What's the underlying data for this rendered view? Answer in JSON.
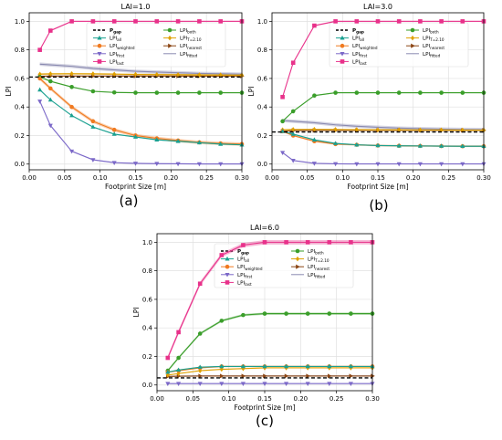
{
  "chart_data": [
    {
      "id": "a",
      "type": "line",
      "panel_label": "(a)",
      "title": "LAI=1.0",
      "xlabel": "Footprint Size [m]",
      "ylabel": "LPI",
      "xlim": [
        0,
        0.3
      ],
      "ylim": [
        -0.04,
        1.06
      ],
      "xticks": [
        "0.00",
        "0.05",
        "0.10",
        "0.15",
        "0.20",
        "0.25",
        "0.30"
      ],
      "yticks": [
        "0.0",
        "0.2",
        "0.4",
        "0.6",
        "0.8",
        "1.0"
      ],
      "legend_columns": [
        [
          "P_gap",
          "LPI_all",
          "LPI_weighted",
          "LPI_first",
          "LPI_last"
        ],
        [
          "LPI_both",
          "LPI_T=2.10",
          "LPI_nearest",
          "LPI_fitted"
        ]
      ],
      "x": [
        0.015,
        0.03,
        0.06,
        0.09,
        0.12,
        0.15,
        0.18,
        0.21,
        0.24,
        0.27,
        0.3
      ],
      "series": [
        {
          "key": "LPI_fitted",
          "color": "#8a8ab0",
          "marker": "none",
          "band": 0.012,
          "values": [
            0.7,
            0.695,
            0.685,
            0.67,
            0.66,
            0.65,
            0.645,
            0.64,
            0.635,
            0.633,
            0.63
          ]
        },
        {
          "key": "LPI_nearest",
          "color": "#8b4513",
          "marker": "tri-right",
          "band": 0.004,
          "values": [
            0.615,
            0.617,
            0.617,
            0.617,
            0.617,
            0.617,
            0.617,
            0.617,
            0.617,
            0.617,
            0.617
          ]
        },
        {
          "key": "LPI_T=2.10",
          "color": "#e0a000",
          "marker": "diamond",
          "band": 0.006,
          "values": [
            0.63,
            0.632,
            0.633,
            0.632,
            0.63,
            0.628,
            0.627,
            0.626,
            0.625,
            0.624,
            0.623
          ]
        },
        {
          "key": "LPI_last",
          "color": "#e8318a",
          "marker": "square",
          "band": 0.005,
          "values": [
            0.8,
            0.935,
            1.0,
            1.0,
            1.0,
            1.0,
            1.0,
            1.0,
            1.0,
            1.0,
            1.0
          ]
        },
        {
          "key": "LPI_both",
          "color": "#3a9e2a",
          "marker": "circle",
          "band": 0.004,
          "values": [
            0.61,
            0.58,
            0.54,
            0.51,
            0.502,
            0.5,
            0.5,
            0.5,
            0.5,
            0.5,
            0.5
          ]
        },
        {
          "key": "LPI_weighted",
          "color": "#f07a20",
          "marker": "circle",
          "band": 0.012,
          "values": [
            0.6,
            0.53,
            0.4,
            0.3,
            0.24,
            0.2,
            0.18,
            0.165,
            0.152,
            0.145,
            0.14
          ]
        },
        {
          "key": "LPI_all",
          "color": "#1aa090",
          "marker": "tri-up",
          "band": 0.004,
          "values": [
            0.52,
            0.45,
            0.34,
            0.26,
            0.21,
            0.19,
            0.17,
            0.16,
            0.15,
            0.14,
            0.135
          ]
        },
        {
          "key": "LPI_first",
          "color": "#7b68c8",
          "marker": "tri-down",
          "band": 0.004,
          "values": [
            0.44,
            0.27,
            0.09,
            0.03,
            0.01,
            0.005,
            0.003,
            0.002,
            0.001,
            0.001,
            0.001
          ]
        },
        {
          "key": "P_gap",
          "color": "#000000",
          "marker": "dashed",
          "band": 0,
          "values": [
            0.61,
            0.61,
            0.61,
            0.61,
            0.61,
            0.61,
            0.61,
            0.61,
            0.61,
            0.61,
            0.61
          ]
        }
      ]
    },
    {
      "id": "b",
      "type": "line",
      "panel_label": "(b)",
      "title": "LAI=3.0",
      "xlabel": "Footprint Size [m]",
      "ylabel": "LPI",
      "xlim": [
        0,
        0.3
      ],
      "ylim": [
        -0.04,
        1.06
      ],
      "xticks": [
        "0.00",
        "0.05",
        "0.10",
        "0.15",
        "0.20",
        "0.25",
        "0.30"
      ],
      "yticks": [
        "0.0",
        "0.2",
        "0.4",
        "0.6",
        "0.8",
        "1.0"
      ],
      "legend_columns": [
        [
          "P_gap",
          "LPI_all",
          "LPI_weighted",
          "LPI_first",
          "LPI_last"
        ],
        [
          "LPI_both",
          "LPI_T=2.10",
          "LPI_nearest",
          "LPI_fitted"
        ]
      ],
      "x": [
        0.015,
        0.03,
        0.06,
        0.09,
        0.12,
        0.15,
        0.18,
        0.21,
        0.24,
        0.27,
        0.3
      ],
      "series": [
        {
          "key": "LPI_fitted",
          "color": "#8a8ab0",
          "marker": "none",
          "band": 0.012,
          "values": [
            0.305,
            0.3,
            0.29,
            0.275,
            0.265,
            0.258,
            0.252,
            0.248,
            0.245,
            0.243,
            0.242
          ]
        },
        {
          "key": "LPI_nearest",
          "color": "#8b4513",
          "marker": "tri-right",
          "band": 0.004,
          "values": [
            0.23,
            0.235,
            0.236,
            0.236,
            0.236,
            0.236,
            0.236,
            0.236,
            0.236,
            0.236,
            0.236
          ]
        },
        {
          "key": "LPI_T=2.10",
          "color": "#e0a000",
          "marker": "diamond",
          "band": 0.005,
          "values": [
            0.24,
            0.242,
            0.243,
            0.242,
            0.241,
            0.24,
            0.24,
            0.239,
            0.239,
            0.238,
            0.238
          ]
        },
        {
          "key": "LPI_last",
          "color": "#e8318a",
          "marker": "square",
          "band": 0.005,
          "values": [
            0.47,
            0.71,
            0.97,
            1.0,
            1.0,
            1.0,
            1.0,
            1.0,
            1.0,
            1.0,
            1.0
          ]
        },
        {
          "key": "LPI_both",
          "color": "#3a9e2a",
          "marker": "circle",
          "band": 0.004,
          "values": [
            0.3,
            0.37,
            0.48,
            0.5,
            0.5,
            0.5,
            0.5,
            0.5,
            0.5,
            0.5,
            0.5
          ]
        },
        {
          "key": "LPI_weighted",
          "color": "#f07a20",
          "marker": "circle",
          "band": 0.006,
          "values": [
            0.23,
            0.2,
            0.16,
            0.14,
            0.135,
            0.13,
            0.128,
            0.127,
            0.126,
            0.125,
            0.125
          ]
        },
        {
          "key": "LPI_all",
          "color": "#1aa090",
          "marker": "tri-up",
          "band": 0.004,
          "values": [
            0.23,
            0.21,
            0.17,
            0.145,
            0.135,
            0.13,
            0.128,
            0.127,
            0.126,
            0.125,
            0.125
          ]
        },
        {
          "key": "LPI_first",
          "color": "#7b68c8",
          "marker": "tri-down",
          "band": 0.003,
          "values": [
            0.08,
            0.025,
            0.005,
            0.002,
            0.001,
            0.001,
            0.001,
            0.001,
            0.001,
            0.001,
            0.001
          ]
        },
        {
          "key": "P_gap",
          "color": "#000000",
          "marker": "dashed",
          "band": 0,
          "values": [
            0.225,
            0.225,
            0.225,
            0.225,
            0.225,
            0.225,
            0.225,
            0.225,
            0.225,
            0.225,
            0.225
          ]
        }
      ]
    },
    {
      "id": "c",
      "type": "line",
      "panel_label": "(c)",
      "title": "LAI=6.0",
      "xlabel": "Footprint Size [m]",
      "ylabel": "LPI",
      "xlim": [
        0,
        0.3
      ],
      "ylim": [
        -0.04,
        1.06
      ],
      "xticks": [
        "0.00",
        "0.05",
        "0.10",
        "0.15",
        "0.20",
        "0.25",
        "0.30"
      ],
      "yticks": [
        "0.0",
        "0.2",
        "0.4",
        "0.6",
        "0.8",
        "1.0"
      ],
      "legend_columns": [
        [
          "P_gap",
          "LPI_all",
          "LPI_weighted",
          "LPI_first",
          "LPI_last"
        ],
        [
          "LPI_both",
          "LPI_T=2.10",
          "LPI_nearest",
          "LPI_fitted"
        ]
      ],
      "x": [
        0.015,
        0.03,
        0.06,
        0.09,
        0.12,
        0.15,
        0.18,
        0.21,
        0.24,
        0.27,
        0.3
      ],
      "series": [
        {
          "key": "LPI_fitted",
          "color": "#8a8ab0",
          "marker": "none",
          "band": 0.004,
          "values": [
            0.06,
            0.062,
            0.063,
            0.063,
            0.063,
            0.063,
            0.063,
            0.063,
            0.063,
            0.063,
            0.063
          ]
        },
        {
          "key": "LPI_nearest",
          "color": "#8b4513",
          "marker": "tri-right",
          "band": 0.003,
          "values": [
            0.06,
            0.062,
            0.063,
            0.063,
            0.063,
            0.063,
            0.063,
            0.063,
            0.063,
            0.063,
            0.063
          ]
        },
        {
          "key": "LPI_T=2.10",
          "color": "#e0a000",
          "marker": "diamond",
          "band": 0.003,
          "values": [
            0.07,
            0.08,
            0.1,
            0.11,
            0.115,
            0.12,
            0.12,
            0.12,
            0.12,
            0.12,
            0.12
          ]
        },
        {
          "key": "LPI_last",
          "color": "#e8318a",
          "marker": "square",
          "band": 0.015,
          "values": [
            0.19,
            0.37,
            0.71,
            0.91,
            0.98,
            1.0,
            1.0,
            1.0,
            1.0,
            1.0,
            1.0
          ]
        },
        {
          "key": "LPI_both",
          "color": "#3a9e2a",
          "marker": "circle",
          "band": 0.008,
          "values": [
            0.1,
            0.19,
            0.36,
            0.45,
            0.49,
            0.5,
            0.5,
            0.5,
            0.5,
            0.5,
            0.5
          ]
        },
        {
          "key": "LPI_weighted",
          "color": "#f07a20",
          "marker": "circle",
          "band": 0.005,
          "values": [
            0.09,
            0.1,
            0.12,
            0.13,
            0.13,
            0.13,
            0.13,
            0.13,
            0.13,
            0.13,
            0.13
          ]
        },
        {
          "key": "LPI_all",
          "color": "#1aa090",
          "marker": "tri-up",
          "band": 0.003,
          "values": [
            0.09,
            0.105,
            0.125,
            0.13,
            0.13,
            0.13,
            0.13,
            0.13,
            0.13,
            0.13,
            0.13
          ]
        },
        {
          "key": "LPI_first",
          "color": "#7b68c8",
          "marker": "tri-down",
          "band": 0.002,
          "values": [
            0.01,
            0.01,
            0.01,
            0.01,
            0.01,
            0.01,
            0.01,
            0.01,
            0.01,
            0.01,
            0.01
          ]
        },
        {
          "key": "P_gap",
          "color": "#000000",
          "marker": "dashed",
          "band": 0,
          "values": [
            0.05,
            0.05,
            0.05,
            0.05,
            0.05,
            0.05,
            0.05,
            0.05,
            0.05,
            0.05,
            0.05
          ]
        }
      ]
    }
  ]
}
